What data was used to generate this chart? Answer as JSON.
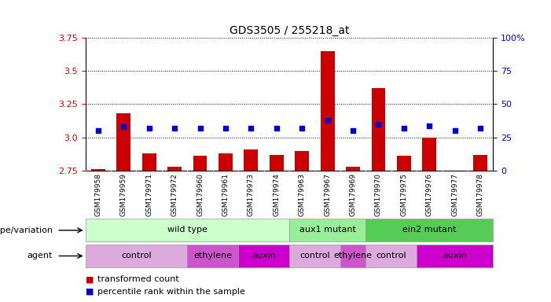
{
  "title": "GDS3505 / 255218_at",
  "samples": [
    "GSM179958",
    "GSM179959",
    "GSM179971",
    "GSM179972",
    "GSM179960",
    "GSM179961",
    "GSM179973",
    "GSM179974",
    "GSM179963",
    "GSM179967",
    "GSM179969",
    "GSM179970",
    "GSM179975",
    "GSM179976",
    "GSM179977",
    "GSM179978"
  ],
  "bar_values": [
    2.76,
    3.18,
    2.88,
    2.78,
    2.86,
    2.88,
    2.91,
    2.87,
    2.9,
    3.65,
    2.78,
    3.37,
    2.86,
    3.0,
    2.75,
    2.87
  ],
  "dot_values": [
    30,
    33,
    32,
    32,
    32,
    32,
    32,
    32,
    32,
    38,
    30,
    35,
    32,
    34,
    30,
    32
  ],
  "ylim_left": [
    2.75,
    3.75
  ],
  "ylim_right": [
    0,
    100
  ],
  "yticks_left": [
    2.75,
    3.0,
    3.25,
    3.5,
    3.75
  ],
  "yticks_right": [
    0,
    25,
    50,
    75,
    100
  ],
  "ytick_labels_right": [
    "0",
    "25",
    "50",
    "75",
    "100%"
  ],
  "bar_color": "#cc0000",
  "dot_color": "#0000cc",
  "baseline": 2.75,
  "genotype_groups": [
    {
      "label": "wild type",
      "start": 0,
      "end": 8,
      "color": "#ccffcc"
    },
    {
      "label": "aux1 mutant",
      "start": 8,
      "end": 11,
      "color": "#99ee99"
    },
    {
      "label": "ein2 mutant",
      "start": 11,
      "end": 16,
      "color": "#55cc55"
    }
  ],
  "agent_groups": [
    {
      "label": "control",
      "start": 0,
      "end": 4,
      "color": "#ddaadd"
    },
    {
      "label": "ethylene",
      "start": 4,
      "end": 6,
      "color": "#cc55cc"
    },
    {
      "label": "auxin",
      "start": 6,
      "end": 8,
      "color": "#cc00cc"
    },
    {
      "label": "control",
      "start": 8,
      "end": 10,
      "color": "#ddaadd"
    },
    {
      "label": "ethylene",
      "start": 10,
      "end": 11,
      "color": "#cc55cc"
    },
    {
      "label": "control",
      "start": 11,
      "end": 13,
      "color": "#ddaadd"
    },
    {
      "label": "auxin",
      "start": 13,
      "end": 16,
      "color": "#cc00cc"
    }
  ],
  "legend_red": "transformed count",
  "legend_blue": "percentile rank within the sample",
  "xlabel_genotype": "genotype/variation",
  "xlabel_agent": "agent",
  "tick_color_left": "#cc0000",
  "tick_color_right": "#0000cc",
  "grid_color": "#000000",
  "sample_bg_color": "#cccccc",
  "bg_color": "#ffffff",
  "bar_width": 0.55
}
